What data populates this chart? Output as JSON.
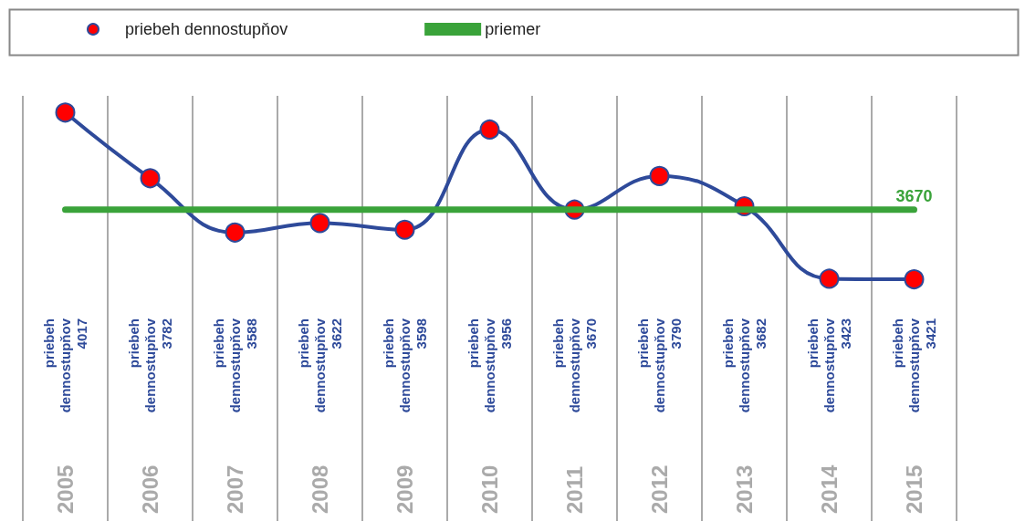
{
  "chart_data": {
    "type": "line",
    "categories": [
      "2005",
      "2006",
      "2007",
      "2008",
      "2009",
      "2010",
      "2011",
      "2012",
      "2013",
      "2014",
      "2015"
    ],
    "series": [
      {
        "name": "priebeh dennostupňov",
        "color": "#2e4a9a",
        "marker": "circle",
        "values": [
          4017,
          3782,
          3588,
          3622,
          3598,
          3956,
          3670,
          3790,
          3682,
          3423,
          3421
        ],
        "value_labels": [
          "4017",
          "3782",
          "3588",
          "3622",
          "3598",
          "3956",
          "3670",
          "3790",
          "3682",
          "3423",
          "3421"
        ]
      },
      {
        "name": "priemer",
        "color": "#3aa33a",
        "marker": "none",
        "values": [
          3670,
          3670,
          3670,
          3670,
          3670,
          3670,
          3670,
          3670,
          3670,
          3670,
          3670
        ],
        "value_labels": [
          null,
          null,
          null,
          null,
          null,
          null,
          null,
          null,
          null,
          null,
          "3670"
        ]
      }
    ],
    "grid": "x",
    "legend": "top"
  }
}
